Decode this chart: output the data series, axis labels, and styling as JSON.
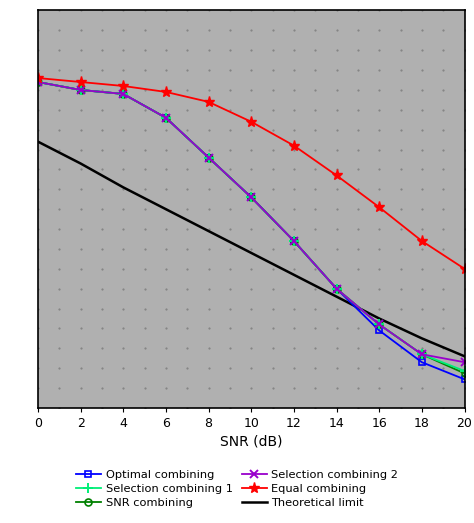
{
  "snr": [
    0,
    2,
    4,
    6,
    8,
    10,
    12,
    14,
    16,
    18,
    20
  ],
  "optimal_combining": [
    0.82,
    0.8,
    0.79,
    0.73,
    0.63,
    0.53,
    0.42,
    0.3,
    0.195,
    0.115,
    0.072
  ],
  "snr_combining": [
    0.82,
    0.8,
    0.79,
    0.73,
    0.63,
    0.53,
    0.42,
    0.3,
    0.21,
    0.135,
    0.087
  ],
  "equal_combining": [
    0.83,
    0.82,
    0.81,
    0.795,
    0.77,
    0.72,
    0.66,
    0.585,
    0.505,
    0.42,
    0.35
  ],
  "selection1": [
    0.82,
    0.8,
    0.79,
    0.73,
    0.63,
    0.53,
    0.42,
    0.3,
    0.21,
    0.135,
    0.093
  ],
  "selection2": [
    0.82,
    0.8,
    0.79,
    0.73,
    0.63,
    0.53,
    0.42,
    0.3,
    0.21,
    0.135,
    0.115
  ],
  "theoretical": [
    0.67,
    0.615,
    0.555,
    0.5,
    0.445,
    0.39,
    0.335,
    0.28,
    0.225,
    0.175,
    0.13
  ],
  "colors": {
    "optimal": "#0000ff",
    "snr": "#008000",
    "equal": "#ff0000",
    "selection1": "#00ee77",
    "selection2": "#9900cc",
    "theoretical": "#000000"
  },
  "xlabel": "SNR (dB)",
  "xlim": [
    0,
    20
  ],
  "ylim": [
    0.0,
    1.0
  ],
  "xticks": [
    0,
    2,
    4,
    6,
    8,
    10,
    12,
    14,
    16,
    18,
    20
  ],
  "bg_color": "#b0b0b0",
  "dot_color": "#888888",
  "legend": {
    "optimal": "Optimal combining",
    "snr": "SNR combining",
    "equal": "Equal combining",
    "selection1": "Selection combining 1",
    "selection2": "Selection combining 2",
    "theoretical": "Theoretical limit"
  }
}
